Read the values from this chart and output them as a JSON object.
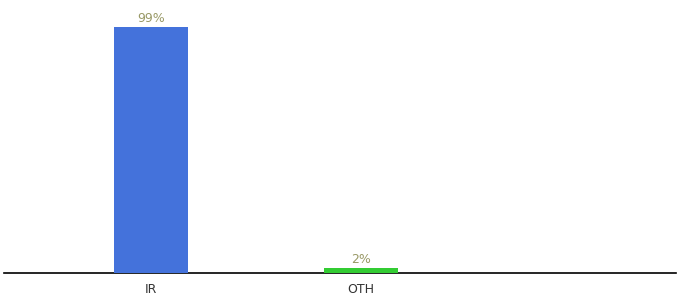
{
  "categories": [
    "IR",
    "OTH"
  ],
  "values": [
    99,
    2
  ],
  "bar_colors": [
    "#4472db",
    "#33cc33"
  ],
  "label_color": "#999966",
  "label_fontsize": 9,
  "tick_fontsize": 9,
  "tick_color": "#333333",
  "ylim": [
    0,
    108
  ],
  "background_color": "#ffffff",
  "bar_width": 0.35,
  "annotations": [
    "99%",
    "2%"
  ],
  "x_positions": [
    1,
    2
  ],
  "xlim": [
    0.3,
    3.5
  ]
}
